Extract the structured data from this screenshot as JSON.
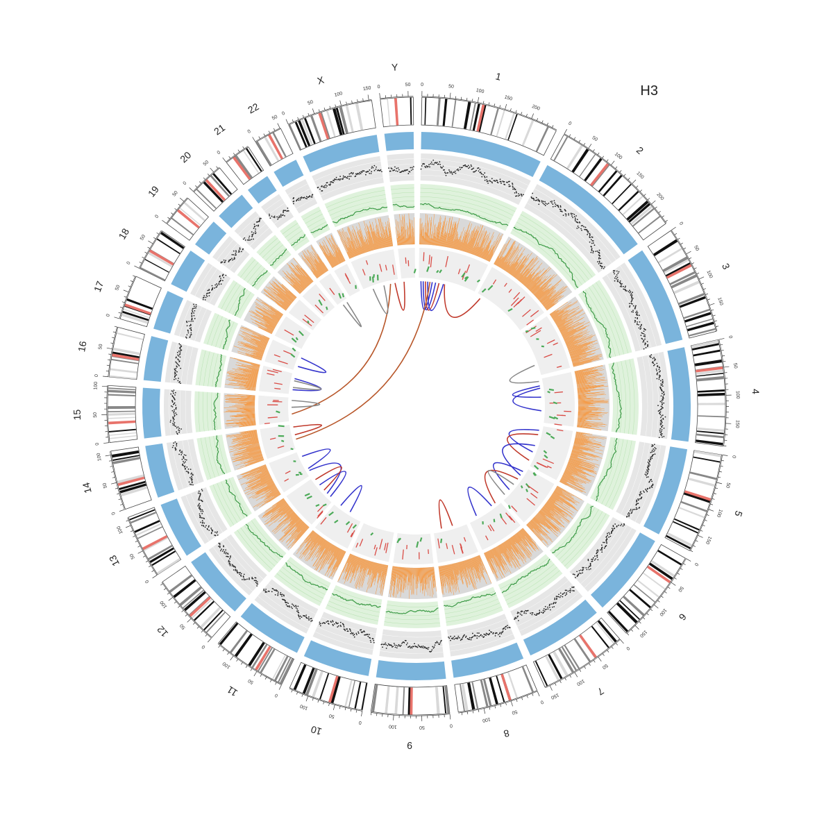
{
  "figure": {
    "title": "H3"
  },
  "chromosomes": [
    {
      "name": "1",
      "length": 249,
      "ticks": [
        0,
        50,
        100,
        150,
        200
      ]
    },
    {
      "name": "2",
      "length": 243,
      "ticks": [
        0,
        50,
        100,
        150,
        200
      ]
    },
    {
      "name": "3",
      "length": 198,
      "ticks": [
        0,
        50,
        100,
        150
      ]
    },
    {
      "name": "4",
      "length": 191,
      "ticks": [
        0,
        50,
        100,
        150
      ]
    },
    {
      "name": "5",
      "length": 181,
      "ticks": [
        0,
        50,
        100,
        150
      ]
    },
    {
      "name": "6",
      "length": 171,
      "ticks": [
        0,
        50,
        100,
        150
      ]
    },
    {
      "name": "7",
      "length": 159,
      "ticks": [
        0,
        50,
        100,
        150
      ]
    },
    {
      "name": "8",
      "length": 146,
      "ticks": [
        0,
        50,
        100
      ]
    },
    {
      "name": "9",
      "length": 141,
      "ticks": [
        0,
        50,
        100
      ]
    },
    {
      "name": "10",
      "length": 136,
      "ticks": [
        0,
        50,
        100
      ]
    },
    {
      "name": "11",
      "length": 135,
      "ticks": [
        0,
        50,
        100
      ]
    },
    {
      "name": "12",
      "length": 133,
      "ticks": [
        0,
        50,
        100
      ]
    },
    {
      "name": "13",
      "length": 115,
      "ticks": [
        0,
        50,
        100
      ]
    },
    {
      "name": "14",
      "length": 107,
      "ticks": [
        0,
        50,
        100
      ]
    },
    {
      "name": "15",
      "length": 102,
      "ticks": [
        0,
        50,
        100
      ]
    },
    {
      "name": "16",
      "length": 90,
      "ticks": [
        0,
        50
      ]
    },
    {
      "name": "17",
      "length": 81,
      "ticks": [
        0,
        50
      ]
    },
    {
      "name": "18",
      "length": 78,
      "ticks": [
        0,
        50
      ]
    },
    {
      "name": "19",
      "length": 59,
      "ticks": [
        0,
        50
      ]
    },
    {
      "name": "20",
      "length": 63,
      "ticks": [
        0,
        50
      ]
    },
    {
      "name": "21",
      "length": 48,
      "ticks": [
        0
      ]
    },
    {
      "name": "22",
      "length": 51,
      "ticks": [
        0,
        50
      ]
    },
    {
      "name": "X",
      "length": 155,
      "ticks": [
        0,
        50,
        100,
        150
      ]
    },
    {
      "name": "Y",
      "length": 59,
      "ticks": [
        0,
        50
      ]
    }
  ],
  "tracks": {
    "ideogram_colors": {
      "band_dark": "#111111",
      "band_mid": "#888888",
      "band_light": "#d9d9d9",
      "centromere": "#e8736b",
      "acrocentric": "#4a7fc1"
    },
    "coverage_color": "#7ab4dc",
    "scatter_color": "#222222",
    "scatter_bg": "#e6e6e6",
    "green_line_color": "#3c9a46",
    "green_bg": "#dff2dc",
    "orange_color": "#f59a45",
    "orange_bg": "#d9d9d9",
    "segment_red": "#d94b45",
    "segment_green": "#4caa58",
    "segment_bg": "#efefef"
  },
  "links": [
    {
      "from": [
        "1",
        10
      ],
      "to": [
        "1",
        60
      ],
      "color": "#3333cc"
    },
    {
      "from": [
        "1",
        20
      ],
      "to": [
        "1",
        75
      ],
      "color": "#3333cc"
    },
    {
      "from": [
        "1",
        30
      ],
      "to": [
        "1",
        90
      ],
      "color": "#c0392b"
    },
    {
      "from": [
        "1",
        40
      ],
      "to": [
        "1",
        110
      ],
      "color": "#3333cc"
    },
    {
      "from": [
        "1",
        115
      ],
      "to": [
        "2",
        20
      ],
      "color": "#c0392b"
    },
    {
      "from": [
        "1",
        50
      ],
      "to": [
        "14",
        40
      ],
      "color": "#b8572a"
    },
    {
      "from": [
        "X",
        120
      ],
      "to": [
        "15",
        30
      ],
      "color": "#b8572a"
    },
    {
      "from": [
        "X",
        140
      ],
      "to": [
        "Y",
        10
      ],
      "color": "#c0392b"
    },
    {
      "from": [
        "21",
        20
      ],
      "to": [
        "21",
        40
      ],
      "color": "#888888"
    },
    {
      "from": [
        "17",
        20
      ],
      "to": [
        "17",
        60
      ],
      "color": "#3333cc"
    },
    {
      "from": [
        "16",
        20
      ],
      "to": [
        "16",
        70
      ],
      "color": "#3333cc"
    },
    {
      "from": [
        "16",
        30
      ],
      "to": [
        "16",
        60
      ],
      "color": "#888888"
    },
    {
      "from": [
        "15",
        60
      ],
      "to": [
        "15",
        90
      ],
      "color": "#888888"
    },
    {
      "from": [
        "4",
        30
      ],
      "to": [
        "4",
        80
      ],
      "color": "#3333cc"
    },
    {
      "from": [
        "4",
        40
      ],
      "to": [
        "4",
        140
      ],
      "color": "#3333cc"
    },
    {
      "from": [
        "3",
        150
      ],
      "to": [
        "4",
        10
      ],
      "color": "#888888"
    },
    {
      "from": [
        "5",
        20
      ],
      "to": [
        "5",
        120
      ],
      "color": "#3333cc"
    },
    {
      "from": [
        "5",
        40
      ],
      "to": [
        "5",
        160
      ],
      "color": "#c0392b"
    },
    {
      "from": [
        "5",
        90
      ],
      "to": [
        "6",
        40
      ],
      "color": "#3333cc"
    },
    {
      "from": [
        "6",
        20
      ],
      "to": [
        "6",
        120
      ],
      "color": "#3333cc"
    },
    {
      "from": [
        "6",
        60
      ],
      "to": [
        "7",
        20
      ],
      "color": "#c0392b"
    },
    {
      "from": [
        "6",
        90
      ],
      "to": [
        "6",
        150
      ],
      "color": "#888888"
    },
    {
      "from": [
        "7",
        40
      ],
      "to": [
        "7",
        120
      ],
      "color": "#3333cc"
    },
    {
      "from": [
        "8",
        60
      ],
      "to": [
        "8",
        110
      ],
      "color": "#c0392b"
    },
    {
      "from": [
        "12",
        20
      ],
      "to": [
        "12",
        90
      ],
      "color": "#3333cc"
    },
    {
      "from": [
        "12",
        40
      ],
      "to": [
        "13",
        20
      ],
      "color": "#3333cc"
    },
    {
      "from": [
        "13",
        30
      ],
      "to": [
        "13",
        90
      ],
      "color": "#3333cc"
    },
    {
      "from": [
        "12",
        60
      ],
      "to": [
        "12",
        120
      ],
      "color": "#c0392b"
    },
    {
      "from": [
        "11",
        60
      ],
      "to": [
        "11",
        110
      ],
      "color": "#3333cc"
    },
    {
      "from": [
        "14",
        60
      ],
      "to": [
        "14",
        95
      ],
      "color": "#c0392b"
    },
    {
      "from": [
        "X",
        40
      ],
      "to": [
        "X",
        90
      ],
      "color": "#888888"
    }
  ]
}
